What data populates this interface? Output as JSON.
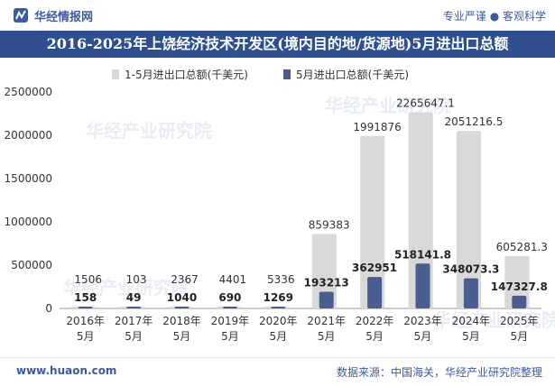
{
  "header": {
    "brand": "华经情报网",
    "slogan": "专业严谨 ● 客观科学"
  },
  "footer": {
    "site": "www.huaon.com",
    "source": "数据来源：中国海关，华经产业研究院整理"
  },
  "watermark": "华经产业研究院",
  "colors": {
    "series1": "#d9d9d9",
    "series2": "#4a5d8f",
    "title_bg": "#2f4f8f",
    "brand": "#3b5b9d"
  },
  "chart_data": {
    "type": "bar",
    "title": "2016-2025年上饶经济技术开发区(境内目的地/货源地)5月进出口总额",
    "categories": [
      "2016年\n5月",
      "2017年\n5月",
      "2018年\n5月",
      "2019年\n5月",
      "2020年\n5月",
      "2021年\n5月",
      "2022年\n5月",
      "2023年\n5月",
      "2024年\n5月",
      "2025年\n5月"
    ],
    "series": [
      {
        "name": "1-5月进出口总额(千美元)",
        "values": [
          1506,
          103,
          2367,
          4401,
          5336,
          859383,
          1991876,
          2265647.1,
          2051216.5,
          605281.3
        ],
        "labels": [
          "1506",
          "103",
          "2367",
          "4401",
          "5336",
          "859383",
          "1991876",
          "2265647.1",
          "2051216.5",
          "605281.3"
        ]
      },
      {
        "name": "5月进出口总额(千美元)",
        "values": [
          158,
          49,
          1040,
          690,
          1269,
          193213,
          362951,
          518141.8,
          348073.3,
          147327.8
        ],
        "labels": [
          "158",
          "49",
          "1040",
          "690",
          "1269",
          "193213",
          "362951",
          "518141.8",
          "348073.3",
          "147327.8"
        ]
      }
    ],
    "ylim": [
      0,
      2500000
    ],
    "yticks": [
      "0",
      "500000",
      "1000000",
      "1500000",
      "2000000",
      "2500000"
    ],
    "ytick_values": [
      0,
      500000,
      1000000,
      1500000,
      2000000,
      2500000
    ],
    "legend": "top-center",
    "grid": false
  }
}
